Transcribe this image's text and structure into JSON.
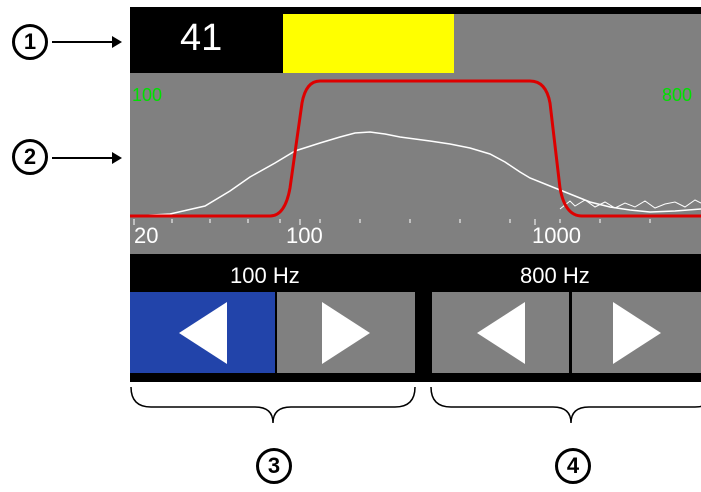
{
  "callouts": [
    "1",
    "2",
    "3",
    "4"
  ],
  "level": {
    "value": "41",
    "fraction": 0.41,
    "fill_color": "#ffff00"
  },
  "spectrum": {
    "low_marker": "100",
    "high_marker": "800",
    "tick_labels": [
      "20",
      "100",
      "1000"
    ],
    "filter_color": "#dd0000",
    "marker_color": "#00e000"
  },
  "low_cut": {
    "label": "100 Hz",
    "decrease_icon": "left-triangle-icon",
    "increase_icon": "right-triangle-icon"
  },
  "high_cut": {
    "label": "800 Hz",
    "decrease_icon": "left-triangle-icon",
    "increase_icon": "right-triangle-icon"
  },
  "colors": {
    "active_button": "#2244aa",
    "button": "#808080",
    "screen": "#000000"
  }
}
